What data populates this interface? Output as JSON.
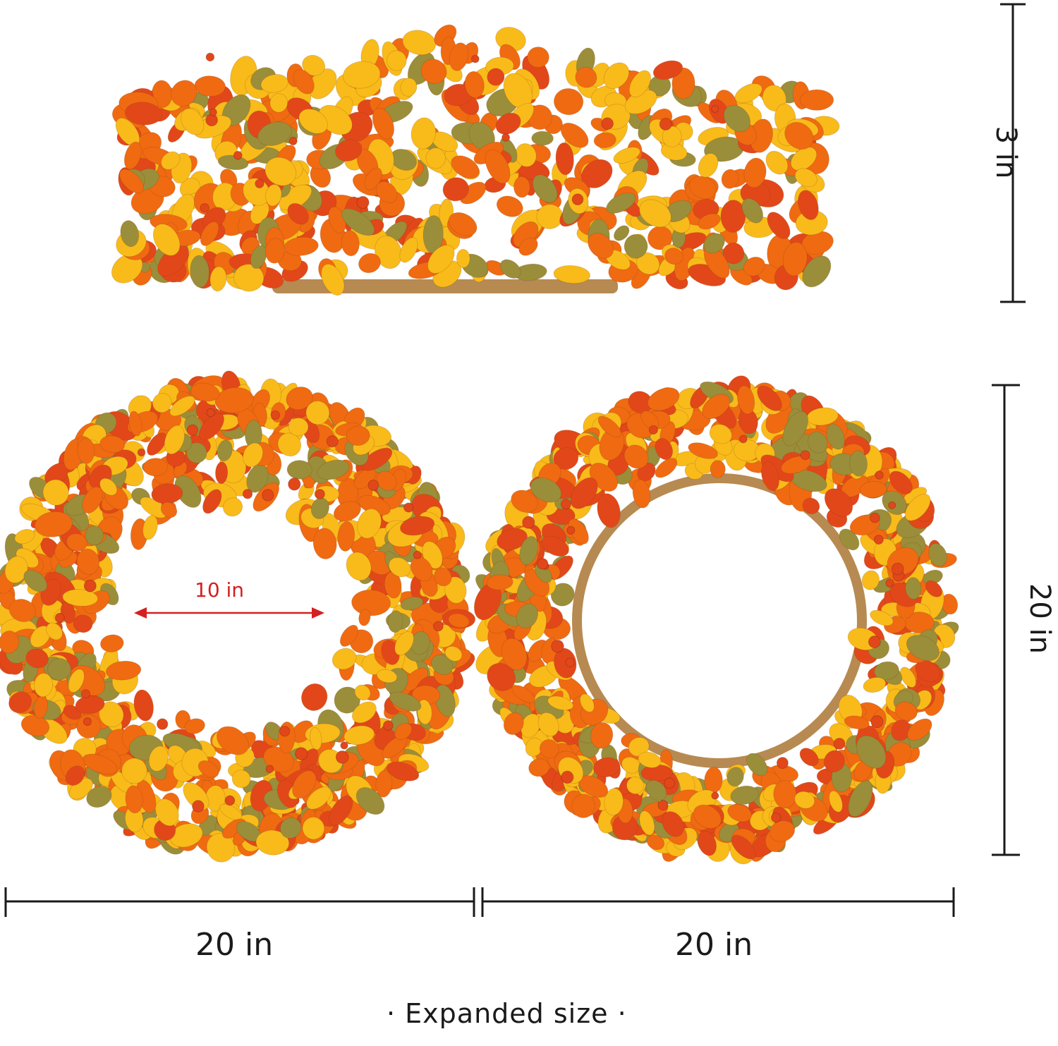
{
  "labels": {
    "height_top": "3 in",
    "height_right": "20 in",
    "width_left": "20 in",
    "width_right": "20 in",
    "inner_diameter": "10 in",
    "caption": "· Expanded size ·"
  },
  "colors": {
    "leaf_orange": "#f06a12",
    "leaf_deep_orange": "#e2471a",
    "leaf_yellow": "#f9bb1a",
    "leaf_olive": "#9a8e3a",
    "rattan": "#b78a52",
    "arrow_red": "#d42020",
    "line": "#1a1a1a"
  }
}
